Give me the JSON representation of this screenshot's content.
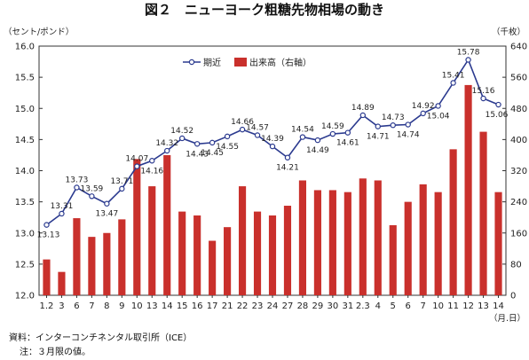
{
  "title": "図２　ニューヨーク粗糖先物相場の動き",
  "left_unit": "（セント/ポンド）",
  "right_unit": "（千枚）",
  "x_unit": "（月.日）",
  "notes": {
    "source": "資料：インターコンチネンタル取引所（ICE）",
    "note": "注：３月限の値。"
  },
  "colors": {
    "line": "#2b3a8f",
    "bar": "#c9302c"
  },
  "chart_data": {
    "type": "bar+line",
    "categories": [
      "1.2",
      "3",
      "6",
      "7",
      "8",
      "9",
      "10",
      "13",
      "14",
      "15",
      "16",
      "17",
      "21",
      "22",
      "23",
      "24",
      "27",
      "28",
      "29",
      "30",
      "31",
      "2.3",
      "4",
      "5",
      "6",
      "7",
      "10",
      "11",
      "12",
      "13",
      "14"
    ],
    "series": [
      {
        "name": "期近",
        "type": "line",
        "axis": "left",
        "values": [
          13.13,
          13.31,
          13.73,
          13.59,
          13.47,
          13.71,
          14.07,
          14.16,
          14.32,
          14.52,
          14.43,
          14.45,
          14.55,
          14.66,
          14.57,
          14.39,
          14.21,
          14.54,
          14.49,
          14.59,
          14.61,
          14.89,
          14.71,
          14.73,
          14.74,
          14.92,
          15.04,
          15.41,
          15.78,
          15.16,
          15.06
        ],
        "labels": [
          "13.13",
          "13.31",
          "13.73",
          "13.59",
          "13.47",
          "13.71",
          "14.07",
          "14.16",
          "14.32",
          "14.52",
          "14.43",
          "14.45",
          "14.55",
          "14.66",
          "14.57",
          "14.39",
          "14.21",
          "14.54",
          "14.49",
          "14.59",
          "14.61",
          "14.89",
          "14.71",
          "14.73",
          "14.74",
          "14.92",
          "15.04",
          "15.41",
          "15.78",
          "15.16",
          "15.06"
        ]
      },
      {
        "name": "出来高（右軸）",
        "type": "bar",
        "axis": "right",
        "values": [
          92,
          60,
          198,
          150,
          160,
          195,
          350,
          280,
          360,
          215,
          205,
          140,
          175,
          280,
          215,
          205,
          230,
          295,
          270,
          270,
          265,
          300,
          295,
          180,
          240,
          285,
          265,
          375,
          540,
          420,
          265
        ]
      }
    ],
    "y_left": {
      "min": 12.0,
      "max": 16.0,
      "step": 0.5,
      "ticks": [
        "12.0",
        "12.5",
        "13.0",
        "13.5",
        "14.0",
        "14.5",
        "15.0",
        "15.5",
        "16.0"
      ]
    },
    "y_right": {
      "min": 0,
      "max": 640,
      "step": 80,
      "ticks": [
        "0",
        "80",
        "160",
        "240",
        "320",
        "400",
        "480",
        "560",
        "640"
      ]
    },
    "grid": false,
    "legend": "top-center"
  }
}
